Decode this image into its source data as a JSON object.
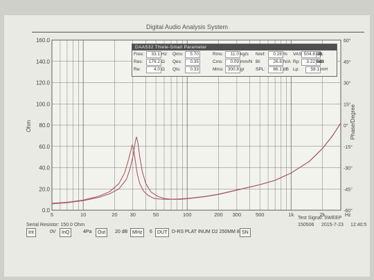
{
  "window_title": "Digital Audio Analysis System",
  "y_axis_title": "Ohm",
  "y2_axis_title": "Phase/Degree",
  "chart_data": {
    "type": "line",
    "x_scale": "log",
    "xlim": [
      5,
      3000
    ],
    "ylim": [
      0,
      160
    ],
    "y2lim": [
      -60,
      60
    ],
    "x_tick_labels": [
      "5",
      "10",
      "20",
      "30",
      "50",
      "100",
      "200",
      "300",
      "500",
      "1k",
      "2k"
    ],
    "x_tick_values": [
      5,
      10,
      20,
      30,
      50,
      100,
      200,
      300,
      500,
      1000,
      2000
    ],
    "y_tick_values": [
      0,
      20,
      40,
      60,
      80,
      100,
      120,
      140,
      160
    ],
    "y_tick_labels": [
      "0.0",
      "20.0",
      "40.0",
      "60.0",
      "80.0",
      "100.0",
      "120.0",
      "140.0",
      "160.0"
    ],
    "y2_tick_values": [
      -60,
      -45,
      -30,
      -15,
      0,
      15,
      30,
      45,
      60
    ],
    "y2_tick_labels": [
      "-60",
      "-45",
      "-30",
      "-15",
      "0",
      "15",
      "30",
      "45",
      "60"
    ],
    "y2_unit": "°",
    "x_unit": "Hz",
    "grid": true,
    "series": [
      {
        "color": "#b05a5a",
        "x": [
          5,
          7,
          10,
          14,
          18,
          22,
          25,
          27,
          28.5,
          29.5,
          30.5,
          31.5,
          33,
          35,
          38,
          42,
          48,
          55,
          65,
          80,
          100,
          150,
          200,
          300,
          500,
          700,
          1000,
          1500,
          2000,
          2500,
          3000
        ],
        "y": [
          6.5,
          7.5,
          9.5,
          13,
          17.5,
          25,
          35,
          46,
          55,
          61,
          58,
          48,
          35,
          25,
          18,
          14,
          11,
          10.5,
          10.2,
          10.5,
          11,
          13,
          15,
          19,
          24,
          28,
          35,
          46,
          58,
          70,
          82
        ]
      },
      {
        "color": "#a05a6a",
        "x": [
          5,
          7,
          10,
          14,
          18,
          22,
          26,
          28,
          30,
          31.5,
          32.5,
          33.5,
          35,
          37,
          40,
          45,
          52,
          60,
          70,
          85,
          100,
          150,
          200,
          300,
          500,
          700,
          1000,
          1500,
          2000,
          2500,
          3000
        ],
        "y": [
          6,
          7,
          9,
          12,
          15.5,
          20,
          29,
          38,
          50,
          63,
          69,
          64,
          50,
          36,
          25,
          17,
          13,
          11,
          10.3,
          10.2,
          10.8,
          12.8,
          14.8,
          18.8,
          24,
          28,
          35,
          46,
          58,
          70,
          82
        ]
      }
    ]
  },
  "param_box": {
    "title": "DAAS32 Thiele-Small Parameter",
    "rows": [
      [
        {
          "label": "Fres:",
          "value": "33.1",
          "unit": "Hz"
        },
        {
          "label": "Qms:",
          "value": "5.70"
        },
        {
          "label": "Rms:",
          "value": "11.0",
          "unit": "kg/s"
        },
        {
          "label": "Nref:",
          "value": "0.28",
          "unit": "%"
        },
        {
          "label": "VAS:",
          "value": "26.0",
          "unit": "L"
        },
        {
          "label": "Cp:",
          "value": "504.8",
          "unit": "uF"
        }
      ],
      [
        {
          "label": "Res:",
          "value": "179.2",
          "unit": "Ω"
        },
        {
          "label": "Qes:",
          "value": "0.35"
        },
        {
          "label": "Cms:",
          "value": "0.09",
          "unit": "mm/N"
        },
        {
          "label": "Bl:",
          "value": "26.8",
          "unit": "N/A"
        },
        {
          "label": "Rp:",
          "value": "58.8",
          "unit": "Ω"
        },
        {
          "label": "Le:",
          "value": "3.22",
          "unit": "mH"
        }
      ],
      [
        {
          "label": "Re:",
          "value": "4.0",
          "unit": "Ω"
        },
        {
          "label": "Qts:",
          "value": "0.33"
        },
        {
          "label": "Mms:",
          "value": "300.8",
          "unit": "gr"
        },
        {
          "label": "SPL:",
          "value": "86.1",
          "unit": "dB"
        },
        {
          "label": "Lp:",
          "value": "58.1",
          "unit": "mH"
        }
      ]
    ]
  },
  "test_signal": "Test Signal: SWEEP",
  "serial_resistor": "Serial Resistor: 150.0 Ohm",
  "toolbar": {
    "int": "Int",
    "v0": "0V",
    "inq": "InQ",
    "pa": "4Pa",
    "out": "Out",
    "db": "20 dB",
    "mhz": "MHz",
    "num": "6",
    "dut": "DUT",
    "device": "D-RS PLAT INUM D2  250MM  80G",
    "sn": "SN"
  },
  "stamp": {
    "id": "150506",
    "date": "2015-7-23",
    "time": "12:40:5"
  }
}
